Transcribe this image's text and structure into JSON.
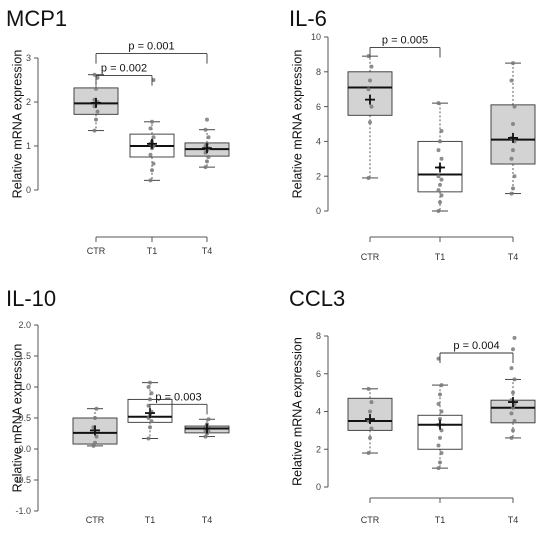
{
  "figure": {
    "ylabel": "Relative mRNA expression"
  },
  "chart_data": [
    {
      "type": "boxplot",
      "title": "MCP1",
      "ylabel": "Relative mRNA expression",
      "categories": [
        "CTR",
        "T1",
        "T4"
      ],
      "ylim": [
        0,
        3
      ],
      "yticks": [
        0,
        1,
        2,
        3
      ],
      "boxes": [
        {
          "category": "CTR",
          "fill": "#d3d3d3",
          "whisker_low": 1.35,
          "q1": 1.72,
          "median": 1.97,
          "q3": 2.32,
          "whisker_high": 2.62,
          "mean": 1.98,
          "points": [
            1.35,
            1.6,
            1.78,
            1.9,
            1.95,
            2.0,
            2.05,
            2.3,
            2.55,
            2.62
          ]
        },
        {
          "category": "T1",
          "fill": "#ffffff",
          "whisker_low": 0.22,
          "q1": 0.75,
          "median": 1.0,
          "q3": 1.27,
          "whisker_high": 1.55,
          "mean": 1.05,
          "points": [
            0.22,
            0.45,
            0.6,
            0.8,
            0.95,
            1.0,
            1.05,
            1.1,
            1.2,
            1.4,
            1.55,
            2.5
          ]
        },
        {
          "category": "T4",
          "fill": "#d3d3d3",
          "whisker_low": 0.52,
          "q1": 0.77,
          "median": 0.93,
          "q3": 1.07,
          "whisker_high": 1.37,
          "mean": 0.95,
          "points": [
            0.52,
            0.65,
            0.75,
            0.85,
            0.9,
            0.95,
            1.0,
            1.05,
            1.2,
            1.37,
            1.6
          ]
        }
      ],
      "annotations": [
        {
          "from": "CTR",
          "to": "T1",
          "label": "p = 0.002",
          "y": 2.6
        },
        {
          "from": "CTR",
          "to": "T4",
          "label": "p = 0.001",
          "y": 3.1
        }
      ]
    },
    {
      "type": "boxplot",
      "title": "IL-6",
      "ylabel": "Relative mRNA expression",
      "categories": [
        "CTR",
        "T1",
        "T4"
      ],
      "ylim": [
        0,
        10
      ],
      "yticks": [
        0,
        2,
        4,
        6,
        8,
        10
      ],
      "boxes": [
        {
          "category": "CTR",
          "fill": "#d3d3d3",
          "whisker_low": 1.9,
          "q1": 5.5,
          "median": 7.1,
          "q3": 8.0,
          "whisker_high": 8.9,
          "mean": 6.4,
          "points": [
            1.9,
            5.1,
            6.0,
            7.0,
            7.5,
            8.3,
            8.9
          ]
        },
        {
          "category": "T1",
          "fill": "#ffffff",
          "whisker_low": 0.0,
          "q1": 1.1,
          "median": 2.1,
          "q3": 4.0,
          "whisker_high": 6.2,
          "mean": 2.5,
          "points": [
            0.0,
            0.5,
            0.9,
            1.2,
            1.5,
            1.8,
            2.0,
            2.5,
            3.0,
            3.5,
            4.0,
            4.6,
            6.2
          ]
        },
        {
          "category": "T4",
          "fill": "#d3d3d3",
          "whisker_low": 1.0,
          "q1": 2.7,
          "median": 4.1,
          "q3": 6.1,
          "whisker_high": 8.5,
          "mean": 4.2,
          "points": [
            1.0,
            1.3,
            2.0,
            3.0,
            3.5,
            4.0,
            4.2,
            5.0,
            6.0,
            7.5,
            8.5
          ]
        }
      ],
      "annotations": [
        {
          "from": "CTR",
          "to": "T1",
          "label": "p = 0.005",
          "y": 9.4
        }
      ]
    },
    {
      "type": "boxplot",
      "title": "IL-10",
      "ylabel": "Relative mRNA expression",
      "categories": [
        "CTR",
        "T1",
        "T4"
      ],
      "ylim": [
        -1.0,
        2.0
      ],
      "yticks": [
        -1.0,
        -0.5,
        0.0,
        0.5,
        1.0,
        1.5,
        2.0
      ],
      "boxes": [
        {
          "category": "CTR",
          "fill": "#d3d3d3",
          "whisker_low": 0.05,
          "q1": 0.08,
          "median": 0.26,
          "q3": 0.5,
          "whisker_high": 0.65,
          "mean": 0.3,
          "points": [
            0.05,
            0.1,
            0.2,
            0.35,
            0.5,
            0.65
          ]
        },
        {
          "category": "T1",
          "fill": "#ffffff",
          "whisker_low": 0.17,
          "q1": 0.43,
          "median": 0.52,
          "q3": 0.8,
          "whisker_high": 1.07,
          "mean": 0.58,
          "points": [
            0.17,
            0.35,
            0.45,
            0.5,
            0.55,
            0.6,
            0.7,
            0.8,
            0.9,
            1.0,
            1.07
          ]
        },
        {
          "category": "T4",
          "fill": "#d3d3d3",
          "whisker_low": 0.2,
          "q1": 0.26,
          "median": 0.33,
          "q3": 0.37,
          "whisker_high": 0.48,
          "mean": 0.33,
          "points": [
            0.2,
            0.25,
            0.28,
            0.3,
            0.32,
            0.34,
            0.36,
            0.4,
            0.48
          ]
        }
      ],
      "annotations": [
        {
          "from": "T1",
          "to": "T4",
          "label": "p = 0.003",
          "y": 0.72
        }
      ]
    },
    {
      "type": "boxplot",
      "title": "CCL3",
      "ylabel": "Relative mRNA expression",
      "categories": [
        "CTR",
        "T1",
        "T4"
      ],
      "ylim": [
        0,
        8
      ],
      "yticks": [
        0,
        2,
        4,
        6,
        8
      ],
      "boxes": [
        {
          "category": "CTR",
          "fill": "#d3d3d3",
          "whisker_low": 1.8,
          "q1": 3.0,
          "median": 3.5,
          "q3": 4.7,
          "whisker_high": 5.2,
          "mean": 3.6,
          "points": [
            1.8,
            2.6,
            3.1,
            3.5,
            4.0,
            4.5,
            5.2
          ]
        },
        {
          "category": "T1",
          "fill": "#ffffff",
          "whisker_low": 1.0,
          "q1": 2.0,
          "median": 3.3,
          "q3": 3.8,
          "whisker_high": 5.4,
          "mean": 3.3,
          "points": [
            1.0,
            1.3,
            1.8,
            2.2,
            2.6,
            3.0,
            3.3,
            3.6,
            4.0,
            4.4,
            4.9,
            5.4,
            6.8
          ]
        },
        {
          "category": "T4",
          "fill": "#d3d3d3",
          "whisker_low": 2.6,
          "q1": 3.4,
          "median": 4.2,
          "q3": 4.6,
          "whisker_high": 5.7,
          "mean": 4.5,
          "points": [
            2.6,
            3.0,
            3.5,
            3.9,
            4.2,
            4.4,
            4.6,
            5.0,
            5.7,
            6.3,
            7.3,
            7.9
          ]
        }
      ],
      "annotations": [
        {
          "from": "T1",
          "to": "T4",
          "label": "p = 0.004",
          "y": 7.1
        }
      ]
    }
  ]
}
